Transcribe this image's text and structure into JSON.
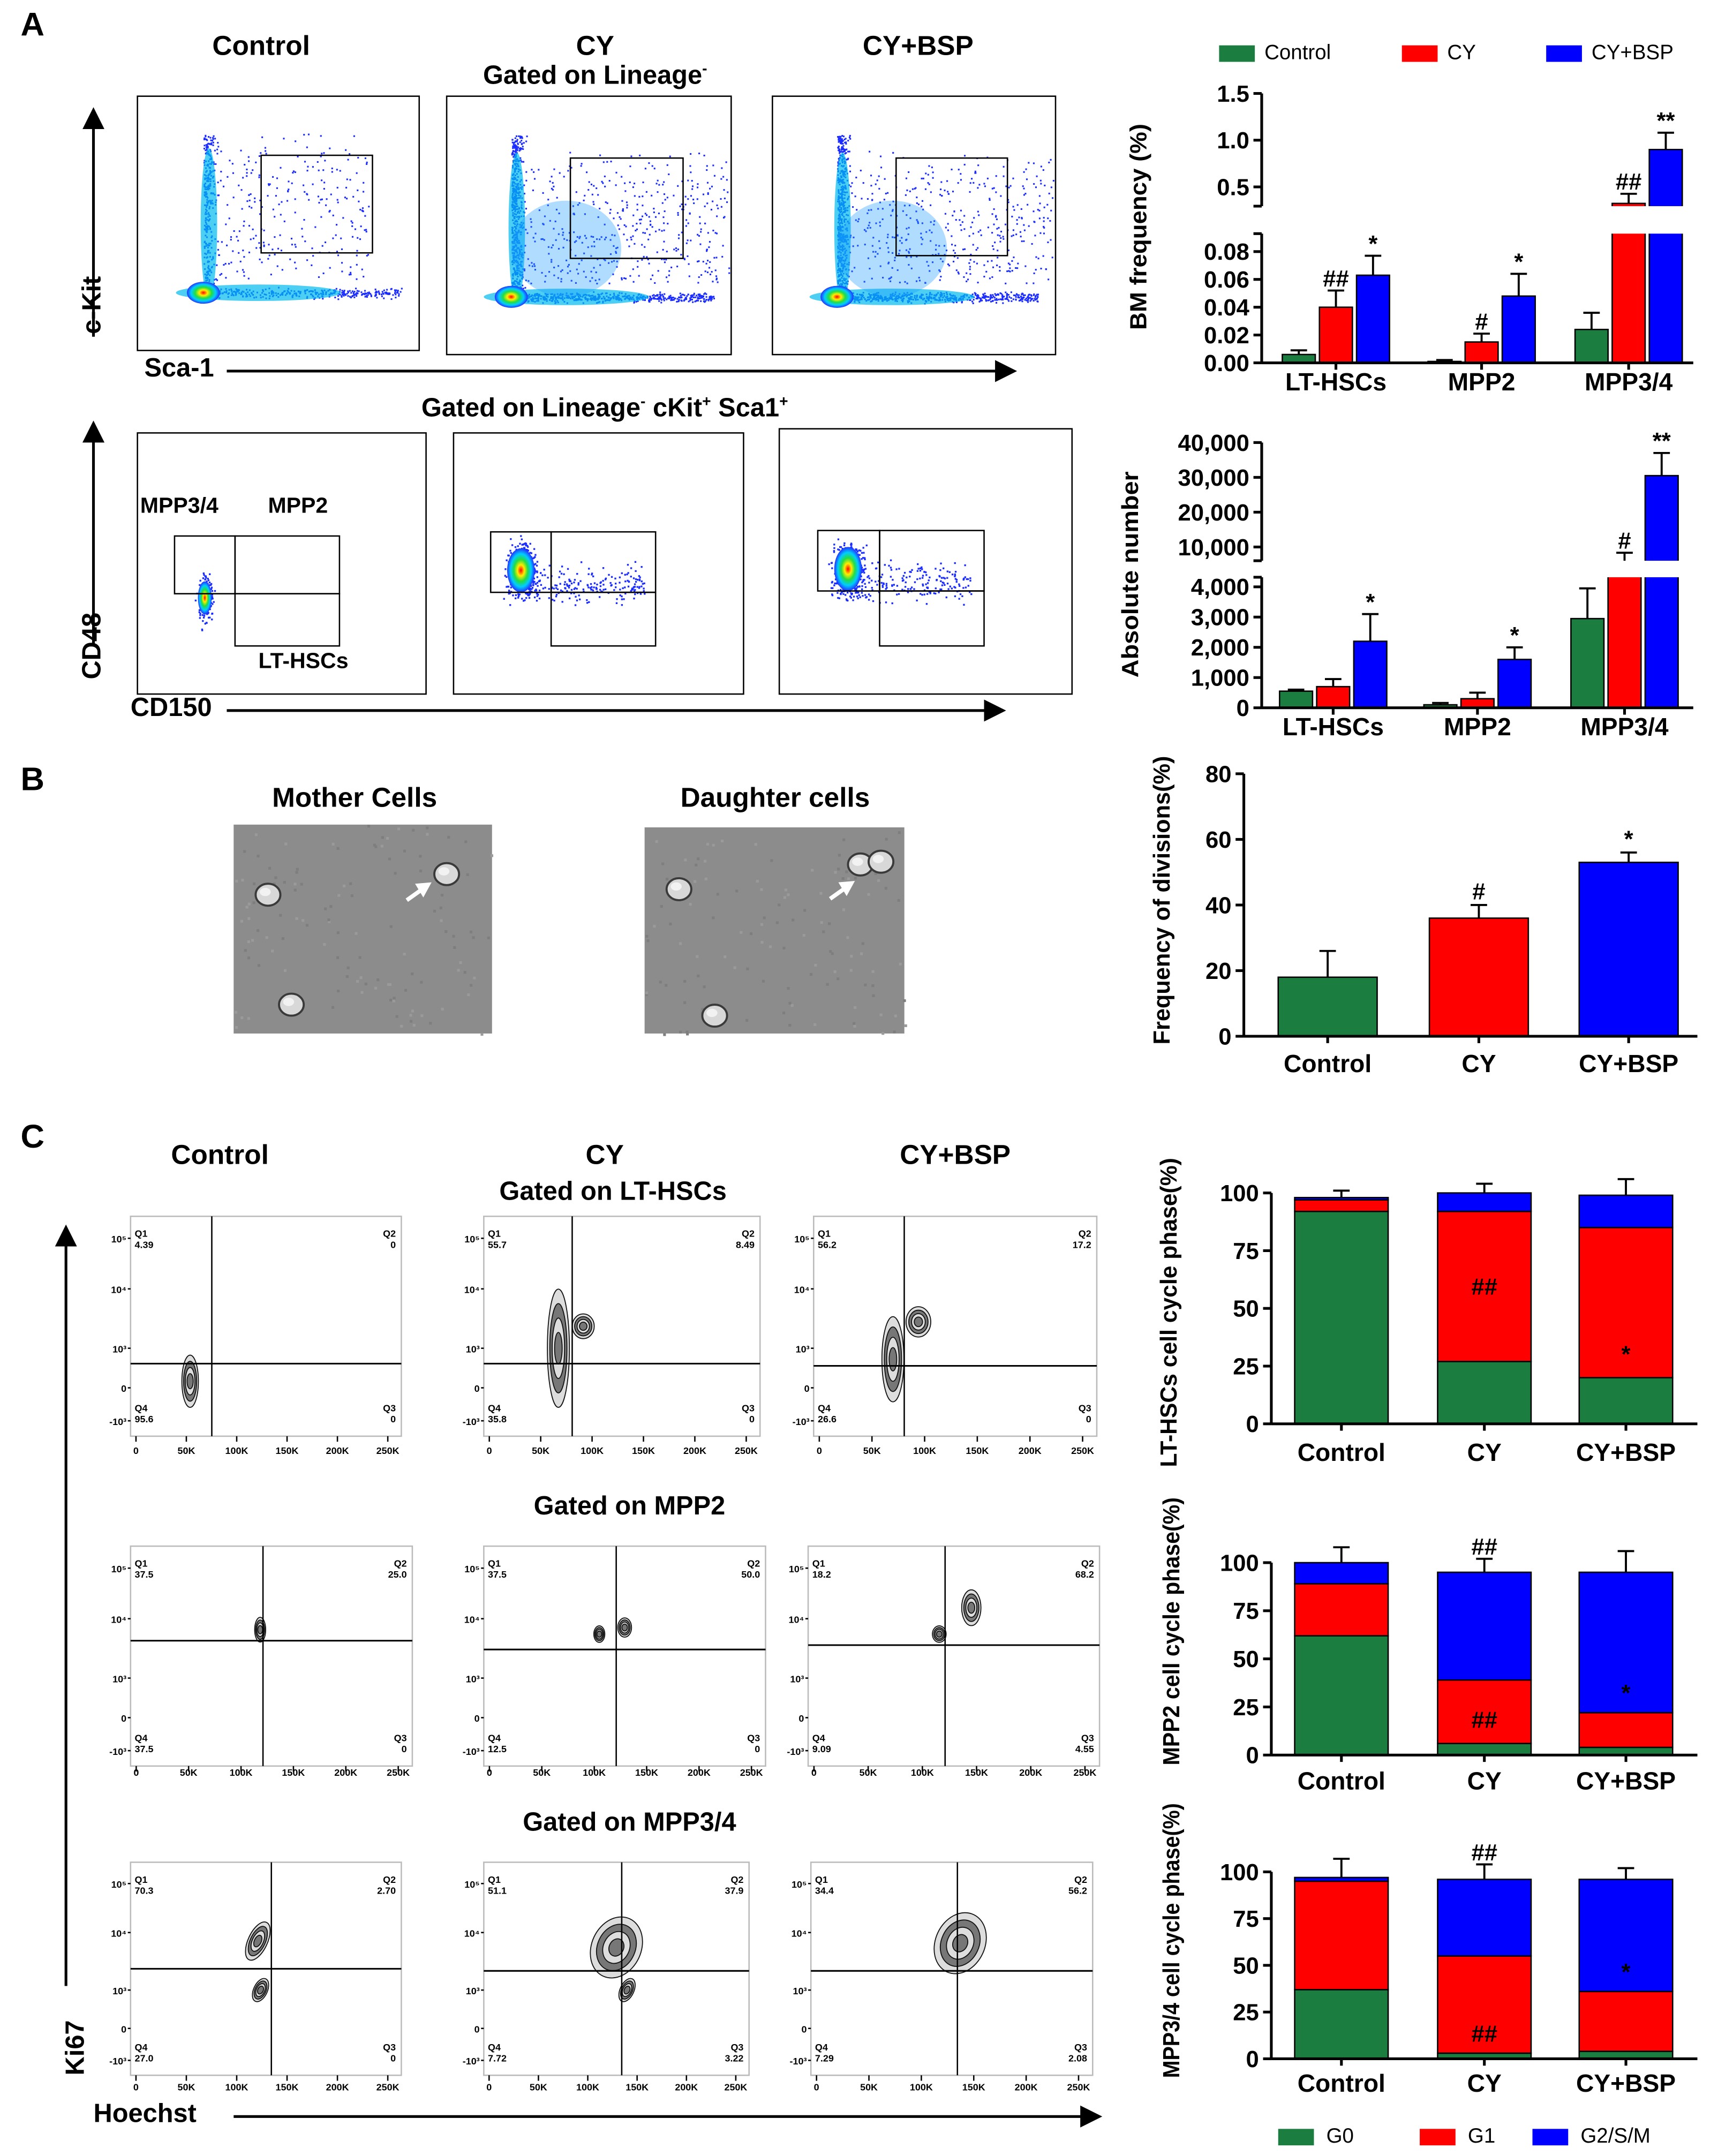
{
  "panel_A": {
    "letter": "A",
    "columns": [
      "Control",
      "CY",
      "CY+BSP"
    ],
    "gate_1": "Gated on Lineage",
    "gate_1_sup": "-",
    "axis_y1": "c-Kit",
    "axis_x1": "Sca-1",
    "gate_2": "Gated on Lineage",
    "gate_2_rest": " cKit",
    "gate_2_rest2": " Sca1",
    "axis_y2": "CD48",
    "axis_x2": "CD150",
    "gate_labels": {
      "mpp34": "MPP3/4",
      "mpp2": "MPP2",
      "lt": "LT-HSCs"
    }
  },
  "panel_B": {
    "letter": "B",
    "image_titles": [
      "Mother Cells",
      "Daughter cells"
    ]
  },
  "panel_C": {
    "letter": "C",
    "columns": [
      "Control",
      "CY",
      "CY+BSP"
    ],
    "gates": [
      "Gated on LT-HSCs",
      "Gated on MPP2",
      "Gated on MPP3/4"
    ],
    "axis_y": "Ki67",
    "axis_x": "Hoechst",
    "flow_x_ticks": [
      "0",
      "50K",
      "100K",
      "150K",
      "200K",
      "250K"
    ],
    "flow_y_ticks": [
      "10⁵",
      "10⁴",
      "10³",
      "0",
      "-10³"
    ],
    "quadrant_names": [
      "Q1",
      "Q2",
      "Q3",
      "Q4"
    ],
    "quadrants": [
      [
        {
          "Q1": "4.39",
          "Q2": "0",
          "Q3": "0",
          "Q4": "95.6"
        },
        {
          "Q1": "55.7",
          "Q2": "8.49",
          "Q3": "0",
          "Q4": "35.8"
        },
        {
          "Q1": "56.2",
          "Q2": "17.2",
          "Q3": "0",
          "Q4": "26.6"
        }
      ],
      [
        {
          "Q1": "37.5",
          "Q2": "25.0",
          "Q3": "0",
          "Q4": "37.5"
        },
        {
          "Q1": "37.5",
          "Q2": "50.0",
          "Q3": "0",
          "Q4": "12.5"
        },
        {
          "Q1": "18.2",
          "Q2": "68.2",
          "Q3": "4.55",
          "Q4": "9.09"
        }
      ],
      [
        {
          "Q1": "70.3",
          "Q2": "2.70",
          "Q3": "0",
          "Q4": "27.0"
        },
        {
          "Q1": "51.1",
          "Q2": "37.9",
          "Q3": "3.22",
          "Q4": "7.72"
        },
        {
          "Q1": "34.4",
          "Q2": "56.2",
          "Q3": "2.08",
          "Q4": "7.29"
        }
      ]
    ]
  },
  "legend_top": [
    "Control",
    "CY",
    "CY+BSP"
  ],
  "legend_bottom": [
    "G0",
    "G1",
    "G2/S/M"
  ],
  "colors": {
    "control": "#1b7d3f",
    "cy": "#ff0000",
    "bsp": "#0000ff",
    "g0": "#1b7d3f",
    "g1": "#ff0000",
    "g2": "#0000ff"
  },
  "chart_data": [
    {
      "id": "bm",
      "type": "bar",
      "ylabel": "BM frequency (%)",
      "categories": [
        "LT-HSCs",
        "MPP2",
        "MPP3/4"
      ],
      "series": [
        {
          "name": "Control",
          "values": [
            0.006,
            0.001,
            0.024
          ],
          "errors": [
            0.003,
            0.001,
            0.012
          ]
        },
        {
          "name": "CY",
          "values": [
            0.04,
            0.015,
            0.38
          ],
          "errors": [
            0.012,
            0.006,
            0.07
          ]
        },
        {
          "name": "CY+BSP",
          "values": [
            0.063,
            0.048,
            0.9
          ],
          "errors": [
            0.014,
            0.016,
            0.18
          ]
        }
      ],
      "annotations": [
        [
          "",
          "##",
          "*"
        ],
        [
          "",
          "#",
          "*"
        ],
        [
          "",
          "##",
          "**"
        ]
      ],
      "yticks": [
        {
          "v": 0,
          "label": "0.00"
        },
        {
          "v": 0.02,
          "label": "0.02"
        },
        {
          "v": 0.04,
          "label": "0.04"
        },
        {
          "v": 0.06,
          "label": "0.06"
        },
        {
          "v": 0.08,
          "label": "0.08"
        },
        {
          "v": 0.5,
          "label": "0.5"
        },
        {
          "v": 1.0,
          "label": "1.0"
        },
        {
          "v": 1.5,
          "label": "1.5"
        }
      ],
      "axis_break": [
        0.08,
        0.5
      ]
    },
    {
      "id": "abs",
      "type": "bar",
      "ylabel": "Absolute number",
      "categories": [
        "LT-HSCs",
        "MPP2",
        "MPP3/4"
      ],
      "series": [
        {
          "name": "Control",
          "values": [
            550,
            100,
            2950
          ],
          "errors": [
            50,
            60,
            1000
          ]
        },
        {
          "name": "CY",
          "values": [
            700,
            300,
            6000
          ],
          "errors": [
            250,
            200,
            2500
          ]
        },
        {
          "name": "CY+BSP",
          "values": [
            2200,
            1600,
            30500
          ],
          "errors": [
            900,
            400,
            6500
          ]
        }
      ],
      "annotations": [
        [
          "",
          "",
          "*"
        ],
        [
          "",
          "",
          "*"
        ],
        [
          "",
          "#",
          "**"
        ]
      ],
      "yticks": [
        {
          "v": 0,
          "label": "0"
        },
        {
          "v": 1000,
          "label": "1,000"
        },
        {
          "v": 2000,
          "label": "2,000"
        },
        {
          "v": 3000,
          "label": "3,000"
        },
        {
          "v": 4000,
          "label": "4,000"
        },
        {
          "v": 10000,
          "label": "10,000"
        },
        {
          "v": 20000,
          "label": "20,000"
        },
        {
          "v": 30000,
          "label": "30,000"
        },
        {
          "v": 40000,
          "label": "40,000"
        }
      ],
      "axis_break": [
        4000,
        10000
      ]
    },
    {
      "id": "div",
      "type": "bar",
      "ylabel": "Frequency of divisions(%)",
      "categories": [
        "Control",
        "CY",
        "CY+BSP"
      ],
      "values": [
        18,
        36,
        53
      ],
      "errors": [
        8,
        4,
        3
      ],
      "annotations": [
        "",
        "#",
        "*"
      ],
      "ylim": [
        0,
        80
      ],
      "yticks": [
        {
          "v": 0,
          "label": "0"
        },
        {
          "v": 20,
          "label": "20"
        },
        {
          "v": 40,
          "label": "40"
        },
        {
          "v": 60,
          "label": "60"
        },
        {
          "v": 80,
          "label": "80"
        }
      ]
    },
    {
      "id": "st1",
      "type": "bar",
      "stacked": true,
      "ylabel": "LT-HSCs cell cycle phase(%)",
      "categories": [
        "Control",
        "CY",
        "CY+BSP"
      ],
      "series": [
        {
          "name": "G0",
          "values": [
            92,
            27,
            20
          ],
          "errors": [
            0,
            14,
            5
          ]
        },
        {
          "name": "G1",
          "values": [
            5,
            65,
            65
          ],
          "errors": [
            0,
            0,
            10
          ]
        },
        {
          "name": "G2/S/M",
          "values": [
            1,
            8,
            14
          ],
          "errors": [
            3,
            4,
            7
          ]
        }
      ],
      "annotations": [
        [
          "",
          "",
          ""
        ],
        [
          "",
          "##",
          ""
        ],
        [
          "*",
          "",
          ""
        ]
      ],
      "ylim": [
        0,
        100
      ],
      "yticks": [
        {
          "v": 0,
          "label": "0"
        },
        {
          "v": 25,
          "label": "25"
        },
        {
          "v": 50,
          "label": "50"
        },
        {
          "v": 75,
          "label": "75"
        },
        {
          "v": 100,
          "label": "100"
        }
      ]
    },
    {
      "id": "st2",
      "type": "bar",
      "stacked": true,
      "ylabel": "MPP2 cell cycle phase(%)",
      "categories": [
        "Control",
        "CY",
        "CY+BSP"
      ],
      "series": [
        {
          "name": "G0",
          "values": [
            62,
            6,
            4
          ],
          "errors": [
            11,
            6,
            5
          ]
        },
        {
          "name": "G1",
          "values": [
            27,
            33,
            18
          ],
          "errors": [
            0,
            11,
            4
          ]
        },
        {
          "name": "G2/S/M",
          "values": [
            11,
            56,
            73
          ],
          "errors": [
            8,
            7,
            11
          ]
        }
      ],
      "annotations": [
        [
          "",
          "",
          ""
        ],
        [
          "",
          "##",
          "##"
        ],
        [
          "",
          "*",
          ""
        ]
      ],
      "ylim": [
        0,
        100
      ],
      "yticks": [
        {
          "v": 0,
          "label": "0"
        },
        {
          "v": 25,
          "label": "25"
        },
        {
          "v": 50,
          "label": "50"
        },
        {
          "v": 75,
          "label": "75"
        },
        {
          "v": 100,
          "label": "100"
        }
      ]
    },
    {
      "id": "st3",
      "type": "bar",
      "stacked": true,
      "ylabel": "MPP3/4 cell cycle phase(%)",
      "categories": [
        "Control",
        "CY",
        "CY+BSP"
      ],
      "series": [
        {
          "name": "G0",
          "values": [
            37,
            3,
            4
          ],
          "errors": [
            11,
            4,
            4
          ]
        },
        {
          "name": "G1",
          "values": [
            58,
            52,
            32
          ],
          "errors": [
            0,
            11,
            4
          ]
        },
        {
          "name": "G2/S/M",
          "values": [
            2,
            41,
            60
          ],
          "errors": [
            10,
            8,
            6
          ]
        }
      ],
      "annotations": [
        [
          "",
          "",
          ""
        ],
        [
          "",
          "##",
          "##"
        ],
        [
          "",
          "*",
          ""
        ]
      ],
      "ylim": [
        0,
        100
      ],
      "yticks": [
        {
          "v": 0,
          "label": "0"
        },
        {
          "v": 25,
          "label": "25"
        },
        {
          "v": 50,
          "label": "50"
        },
        {
          "v": 75,
          "label": "75"
        },
        {
          "v": 100,
          "label": "100"
        }
      ]
    }
  ]
}
